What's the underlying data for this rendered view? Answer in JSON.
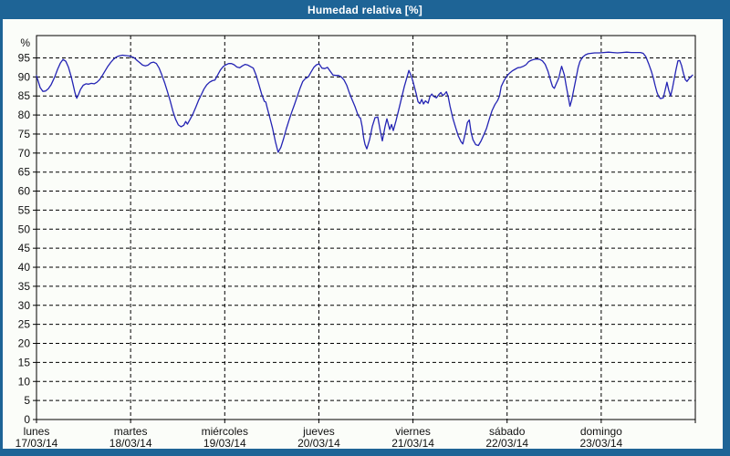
{
  "window": {
    "title": "Humedad relativa [%]"
  },
  "colors": {
    "frame": "#1e6496",
    "title_text": "#ffffff",
    "panel_background": "#fbfdf9",
    "plot_border": "#000000",
    "gridline": "#000000",
    "label_text": "#111111",
    "series": "#2424b4"
  },
  "chart_data": {
    "type": "line",
    "title": "Humedad relativa [%]",
    "xlabel": "",
    "ylabel": "%",
    "ylim": [
      0,
      100
    ],
    "grid": true,
    "legend": "none",
    "y_ticks": [
      0,
      5,
      10,
      15,
      20,
      25,
      30,
      35,
      40,
      45,
      50,
      55,
      60,
      65,
      70,
      75,
      80,
      85,
      90,
      95
    ],
    "x_axis": {
      "unit": "day",
      "days": [
        {
          "name": "lunes",
          "date": "17/03/14"
        },
        {
          "name": "martes",
          "date": "18/03/14"
        },
        {
          "name": "miércoles",
          "date": "19/03/14"
        },
        {
          "name": "jueves",
          "date": "20/03/14"
        },
        {
          "name": "viernes",
          "date": "21/03/14"
        },
        {
          "name": "sábado",
          "date": "22/03/14"
        },
        {
          "name": "domingo",
          "date": "23/03/14"
        }
      ]
    },
    "series": [
      {
        "name": "Humedad relativa",
        "color": "#2424b4",
        "x_unit": "days_since_start",
        "points": [
          [
            0.0,
            90.3
          ],
          [
            0.039,
            87.2
          ],
          [
            0.068,
            86.2
          ],
          [
            0.097,
            86.3
          ],
          [
            0.126,
            86.9
          ],
          [
            0.156,
            88.0
          ],
          [
            0.194,
            90.0
          ],
          [
            0.224,
            92.0
          ],
          [
            0.253,
            93.6
          ],
          [
            0.282,
            94.6
          ],
          [
            0.311,
            94.1
          ],
          [
            0.34,
            92.5
          ],
          [
            0.369,
            90.0
          ],
          [
            0.389,
            88.0
          ],
          [
            0.408,
            85.9
          ],
          [
            0.428,
            84.4
          ],
          [
            0.447,
            85.4
          ],
          [
            0.467,
            86.7
          ],
          [
            0.496,
            87.8
          ],
          [
            0.525,
            88.2
          ],
          [
            0.554,
            88.1
          ],
          [
            0.583,
            88.3
          ],
          [
            0.613,
            88.2
          ],
          [
            0.642,
            88.6
          ],
          [
            0.671,
            89.3
          ],
          [
            0.7,
            90.4
          ],
          [
            0.729,
            91.6
          ],
          [
            0.758,
            92.8
          ],
          [
            0.788,
            93.8
          ],
          [
            0.817,
            94.6
          ],
          [
            0.846,
            95.2
          ],
          [
            0.875,
            95.5
          ],
          [
            0.914,
            95.7
          ],
          [
            0.953,
            95.6
          ],
          [
            0.982,
            95.5
          ],
          [
            1.011,
            95.3
          ],
          [
            1.04,
            95.0
          ],
          [
            1.069,
            94.3
          ],
          [
            1.099,
            93.7
          ],
          [
            1.128,
            93.1
          ],
          [
            1.157,
            92.9
          ],
          [
            1.186,
            93.1
          ],
          [
            1.215,
            93.7
          ],
          [
            1.244,
            93.9
          ],
          [
            1.274,
            93.5
          ],
          [
            1.303,
            92.3
          ],
          [
            1.332,
            90.5
          ],
          [
            1.361,
            88.5
          ],
          [
            1.39,
            86.2
          ],
          [
            1.419,
            83.8
          ],
          [
            1.449,
            81.0
          ],
          [
            1.478,
            78.9
          ],
          [
            1.507,
            77.4
          ],
          [
            1.536,
            76.9
          ],
          [
            1.565,
            77.3
          ],
          [
            1.585,
            78.3
          ],
          [
            1.604,
            77.6
          ],
          [
            1.633,
            78.9
          ],
          [
            1.663,
            80.3
          ],
          [
            1.692,
            82.0
          ],
          [
            1.721,
            83.8
          ],
          [
            1.75,
            85.3
          ],
          [
            1.779,
            86.8
          ],
          [
            1.808,
            87.9
          ],
          [
            1.838,
            88.6
          ],
          [
            1.867,
            89.0
          ],
          [
            1.896,
            89.2
          ],
          [
            1.925,
            90.5
          ],
          [
            1.954,
            91.8
          ],
          [
            1.983,
            92.7
          ],
          [
            2.013,
            93.2
          ],
          [
            2.042,
            93.5
          ],
          [
            2.071,
            93.5
          ],
          [
            2.1,
            93.2
          ],
          [
            2.129,
            92.6
          ],
          [
            2.158,
            92.4
          ],
          [
            2.188,
            92.9
          ],
          [
            2.217,
            93.3
          ],
          [
            2.246,
            93.1
          ],
          [
            2.275,
            92.7
          ],
          [
            2.304,
            92.3
          ],
          [
            2.333,
            90.5
          ],
          [
            2.363,
            88.0
          ],
          [
            2.392,
            85.5
          ],
          [
            2.421,
            83.6
          ],
          [
            2.436,
            83.4
          ],
          [
            2.45,
            82.0
          ],
          [
            2.479,
            79.3
          ],
          [
            2.508,
            76.5
          ],
          [
            2.538,
            73.0
          ],
          [
            2.567,
            70.2
          ],
          [
            2.596,
            71.5
          ],
          [
            2.625,
            73.8
          ],
          [
            2.654,
            76.3
          ],
          [
            2.683,
            78.6
          ],
          [
            2.713,
            80.8
          ],
          [
            2.742,
            82.8
          ],
          [
            2.771,
            84.9
          ],
          [
            2.8,
            87.0
          ],
          [
            2.829,
            88.8
          ],
          [
            2.858,
            89.6
          ],
          [
            2.888,
            90.0
          ],
          [
            2.917,
            91.3
          ],
          [
            2.946,
            92.5
          ],
          [
            2.975,
            93.2
          ],
          [
            3.004,
            93.4
          ],
          [
            3.033,
            92.3
          ],
          [
            3.063,
            92.2
          ],
          [
            3.092,
            92.5
          ],
          [
            3.121,
            91.5
          ],
          [
            3.15,
            90.5
          ],
          [
            3.179,
            90.4
          ],
          [
            3.208,
            90.4
          ],
          [
            3.238,
            90.0
          ],
          [
            3.267,
            89.2
          ],
          [
            3.296,
            87.8
          ],
          [
            3.325,
            85.8
          ],
          [
            3.354,
            84.0
          ],
          [
            3.383,
            82.3
          ],
          [
            3.413,
            80.2
          ],
          [
            3.432,
            79.3
          ],
          [
            3.442,
            79.2
          ],
          [
            3.461,
            76.8
          ],
          [
            3.476,
            74.0
          ],
          [
            3.49,
            72.3
          ],
          [
            3.51,
            71.1
          ],
          [
            3.539,
            73.5
          ],
          [
            3.568,
            77.0
          ],
          [
            3.597,
            79.3
          ],
          [
            3.626,
            79.5
          ],
          [
            3.655,
            75.5
          ],
          [
            3.675,
            73.2
          ],
          [
            3.704,
            77.0
          ],
          [
            3.723,
            79.0
          ],
          [
            3.753,
            76.2
          ],
          [
            3.772,
            77.5
          ],
          [
            3.791,
            75.9
          ],
          [
            3.82,
            78.5
          ],
          [
            3.85,
            81.5
          ],
          [
            3.879,
            84.5
          ],
          [
            3.908,
            87.5
          ],
          [
            3.937,
            90.0
          ],
          [
            3.957,
            91.7
          ],
          [
            3.986,
            90.0
          ],
          [
            4.005,
            88.3
          ],
          [
            4.035,
            85.5
          ],
          [
            4.054,
            83.5
          ],
          [
            4.073,
            83.0
          ],
          [
            4.093,
            84.1
          ],
          [
            4.112,
            82.9
          ],
          [
            4.132,
            83.7
          ],
          [
            4.161,
            83.1
          ],
          [
            4.18,
            84.8
          ],
          [
            4.2,
            85.5
          ],
          [
            4.219,
            84.9
          ],
          [
            4.248,
            84.5
          ],
          [
            4.277,
            85.4
          ],
          [
            4.297,
            85.9
          ],
          [
            4.316,
            85.1
          ],
          [
            4.336,
            85.5
          ],
          [
            4.355,
            86.1
          ],
          [
            4.374,
            84.9
          ],
          [
            4.394,
            82.3
          ],
          [
            4.423,
            79.2
          ],
          [
            4.452,
            76.8
          ],
          [
            4.481,
            74.5
          ],
          [
            4.51,
            73.0
          ],
          [
            4.53,
            72.4
          ],
          [
            4.559,
            75.5
          ],
          [
            4.578,
            78.0
          ],
          [
            4.598,
            78.7
          ],
          [
            4.617,
            75.5
          ],
          [
            4.637,
            73.5
          ],
          [
            4.666,
            72.2
          ],
          [
            4.695,
            72.0
          ],
          [
            4.724,
            73.2
          ],
          [
            4.753,
            74.8
          ],
          [
            4.782,
            76.5
          ],
          [
            4.812,
            79.0
          ],
          [
            4.841,
            81.2
          ],
          [
            4.87,
            82.7
          ],
          [
            4.899,
            83.8
          ],
          [
            4.919,
            85.0
          ],
          [
            4.938,
            87.5
          ],
          [
            4.967,
            89.0
          ],
          [
            4.997,
            90.2
          ],
          [
            5.026,
            91.0
          ],
          [
            5.055,
            91.6
          ],
          [
            5.084,
            92.0
          ],
          [
            5.113,
            92.4
          ],
          [
            5.142,
            92.5
          ],
          [
            5.172,
            92.8
          ],
          [
            5.201,
            93.2
          ],
          [
            5.23,
            94.0
          ],
          [
            5.259,
            94.4
          ],
          [
            5.288,
            94.6
          ],
          [
            5.317,
            94.7
          ],
          [
            5.347,
            94.6
          ],
          [
            5.376,
            94.2
          ],
          [
            5.405,
            93.3
          ],
          [
            5.434,
            91.5
          ],
          [
            5.463,
            89.0
          ],
          [
            5.483,
            87.5
          ],
          [
            5.502,
            87.0
          ],
          [
            5.522,
            88.2
          ],
          [
            5.551,
            89.8
          ],
          [
            5.566,
            91.5
          ],
          [
            5.58,
            92.8
          ],
          [
            5.609,
            90.5
          ],
          [
            5.629,
            87.5
          ],
          [
            5.648,
            85.0
          ],
          [
            5.668,
            82.3
          ],
          [
            5.687,
            84.0
          ],
          [
            5.706,
            86.3
          ],
          [
            5.736,
            90.0
          ],
          [
            5.755,
            92.5
          ],
          [
            5.774,
            94.0
          ],
          [
            5.803,
            95.2
          ],
          [
            5.833,
            95.8
          ],
          [
            5.862,
            96.1
          ],
          [
            5.891,
            96.2
          ],
          [
            5.93,
            96.3
          ],
          [
            5.979,
            96.3
          ],
          [
            6.027,
            96.4
          ],
          [
            6.076,
            96.5
          ],
          [
            6.125,
            96.4
          ],
          [
            6.173,
            96.3
          ],
          [
            6.222,
            96.4
          ],
          [
            6.271,
            96.5
          ],
          [
            6.319,
            96.4
          ],
          [
            6.368,
            96.4
          ],
          [
            6.417,
            96.4
          ],
          [
            6.446,
            96.2
          ],
          [
            6.475,
            95.3
          ],
          [
            6.504,
            93.5
          ],
          [
            6.533,
            91.5
          ],
          [
            6.553,
            89.8
          ],
          [
            6.572,
            87.8
          ],
          [
            6.592,
            86.0
          ],
          [
            6.611,
            84.8
          ],
          [
            6.63,
            84.3
          ],
          [
            6.66,
            84.5
          ],
          [
            6.679,
            86.5
          ],
          [
            6.698,
            88.6
          ],
          [
            6.718,
            86.5
          ],
          [
            6.737,
            85.0
          ],
          [
            6.757,
            87.0
          ],
          [
            6.776,
            89.5
          ],
          [
            6.795,
            92.0
          ],
          [
            6.815,
            94.2
          ],
          [
            6.834,
            94.3
          ],
          [
            6.854,
            93.0
          ],
          [
            6.873,
            91.0
          ],
          [
            6.893,
            89.3
          ],
          [
            6.912,
            88.8
          ],
          [
            6.932,
            89.5
          ],
          [
            6.951,
            90.0
          ],
          [
            6.971,
            90.5
          ]
        ]
      }
    ]
  }
}
